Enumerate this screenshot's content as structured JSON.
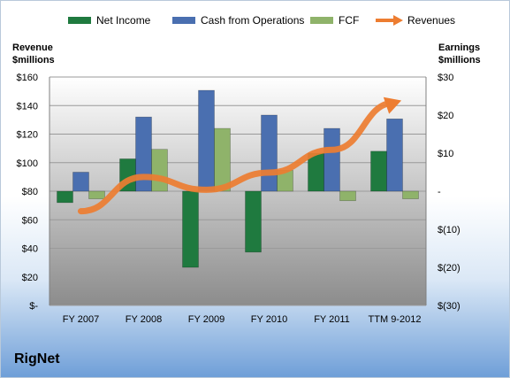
{
  "chart_data": {
    "type": "bar",
    "categories": [
      "FY 2007",
      "FY 2008",
      "FY 2009",
      "FY 2010",
      "FY 2011",
      "TTM 9-2012"
    ],
    "series": [
      {
        "name": "Net Income",
        "axis": "right",
        "type": "bar",
        "color": "#1f7a3f",
        "values": [
          -3.0,
          8.5,
          -20.0,
          -16.0,
          10.0,
          10.5
        ]
      },
      {
        "name": "Cash from Operations",
        "axis": "right",
        "type": "bar",
        "color": "#4a6fb0",
        "values": [
          5.0,
          19.5,
          26.5,
          20.0,
          16.5,
          19.0
        ]
      },
      {
        "name": "FCF",
        "axis": "right",
        "type": "bar",
        "color": "#8fb36a",
        "values": [
          -2.0,
          11.0,
          16.5,
          5.5,
          -2.5,
          -2.0
        ]
      },
      {
        "name": "Revenues",
        "axis": "left",
        "type": "line",
        "color": "#ed7d31",
        "values": [
          66,
          90,
          81,
          93,
          109,
          142
        ]
      }
    ],
    "left_axis": {
      "title_line1": "Revenue",
      "title_line2": "$millions",
      "ylim": [
        0,
        160
      ],
      "ticks": [
        0,
        20,
        40,
        60,
        80,
        100,
        120,
        140,
        160
      ],
      "tick_labels": [
        "$-",
        "$20",
        "$40",
        "$60",
        "$80",
        "$100",
        "$120",
        "$140",
        "$160"
      ]
    },
    "right_axis": {
      "title_line1": "Earnings",
      "title_line2": "$millions",
      "ylim": [
        -30,
        30
      ],
      "ticks": [
        -30,
        -20,
        -10,
        0,
        10,
        20,
        30
      ],
      "tick_labels": [
        "$(30)",
        "$(20)",
        "$(10)",
        "-",
        "$10",
        "$20",
        "$30"
      ]
    },
    "legend_position": "top",
    "grid": true
  },
  "company": "RigNet"
}
